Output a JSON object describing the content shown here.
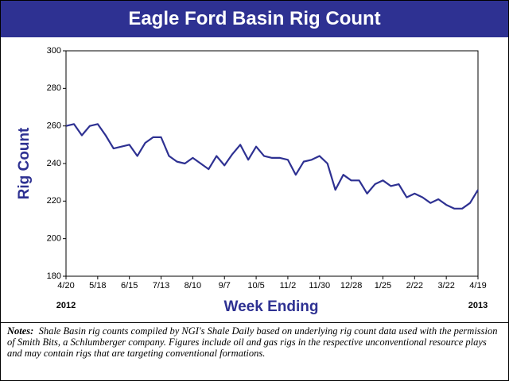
{
  "chart_data": {
    "type": "line",
    "title": "Eagle Ford Basin Rig Count",
    "y_label": "Rig Count",
    "x_label": "Week Ending",
    "annotations": [
      "2012",
      "2013"
    ],
    "categories": [
      "4/20",
      null,
      null,
      null,
      "5/18",
      null,
      null,
      null,
      "6/15",
      null,
      null,
      null,
      "7/13",
      null,
      null,
      null,
      "8/10",
      null,
      null,
      null,
      "9/7",
      null,
      null,
      null,
      "10/5",
      null,
      null,
      null,
      "11/2",
      null,
      null,
      null,
      "11/30",
      null,
      null,
      null,
      "12/28",
      null,
      null,
      null,
      "1/25",
      null,
      null,
      null,
      "2/22",
      null,
      null,
      null,
      "3/22",
      null,
      null,
      null,
      "4/19"
    ],
    "series": [
      {
        "name": "Rig Count",
        "color": "#2e3192",
        "values": [
          260,
          261,
          255,
          260,
          261,
          255,
          248,
          249,
          250,
          244,
          251,
          254,
          254,
          244,
          241,
          240,
          243,
          240,
          237,
          244,
          239,
          245,
          250,
          242,
          249,
          244,
          243,
          243,
          242,
          234,
          241,
          242,
          244,
          240,
          226,
          234,
          231,
          231,
          224,
          229,
          231,
          228,
          229,
          222,
          224,
          222,
          219,
          221,
          218,
          216,
          216,
          219,
          226
        ]
      }
    ],
    "ylim": [
      180,
      300
    ],
    "yticks": [
      180,
      200,
      220,
      240,
      260,
      280,
      300
    ],
    "grid": false
  },
  "notes": {
    "label": "Notes:",
    "text": "Shale Basin rig counts compiled by NGI's Shale Daily based on underlying rig count data used with the permission of Smith Bits, a Schlumberger company.  Figures include oil and gas rigs in the respective unconventional resource plays and may contain rigs that are targeting conventional formations."
  }
}
